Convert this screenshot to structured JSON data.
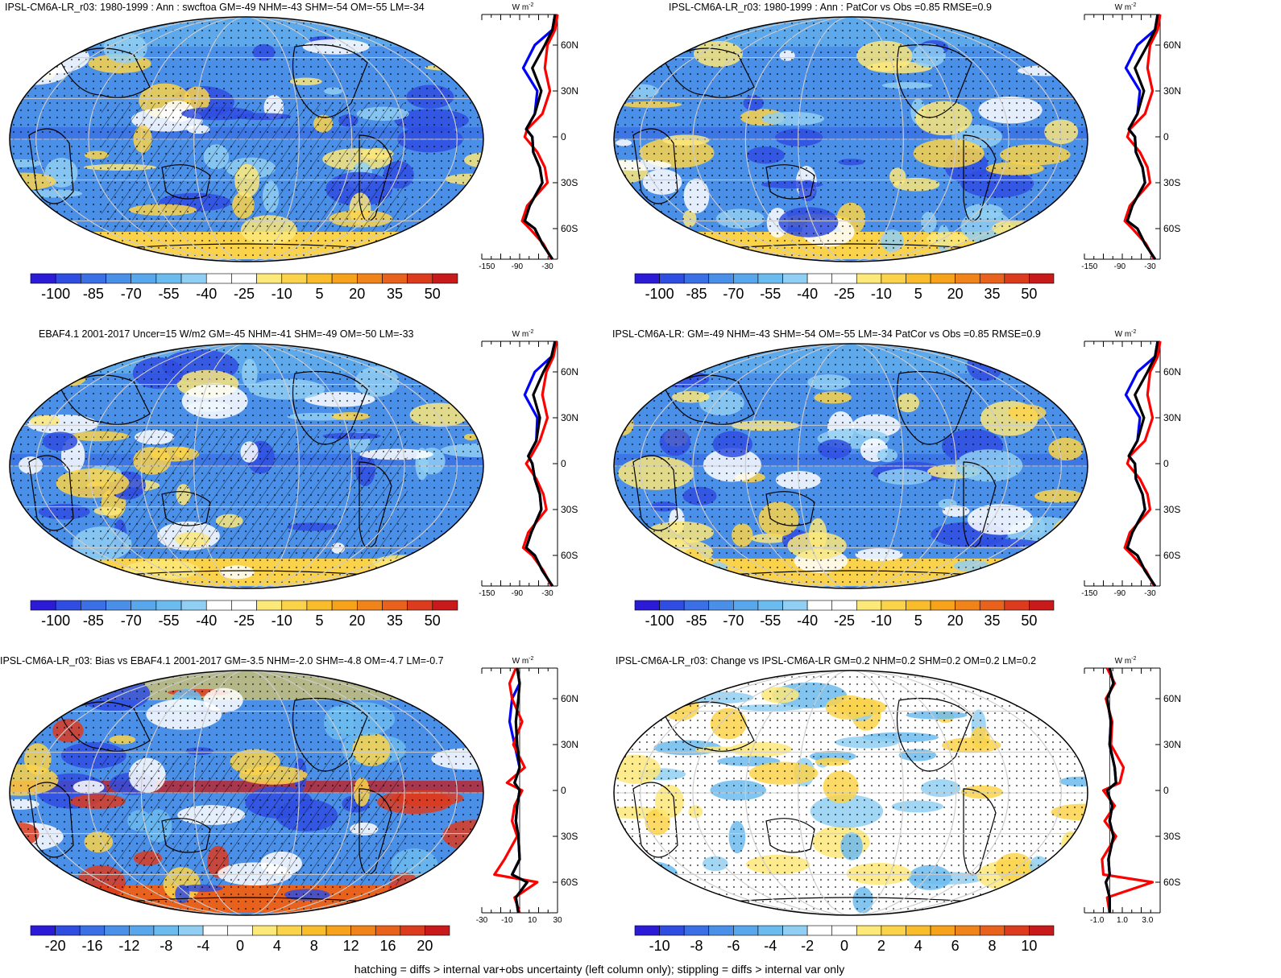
{
  "footnote": "hatching = diffs > internal var+obs uncertainty (left column only); stippling = diffs > internal var only",
  "colors": {
    "scale": [
      "#2b1bd6",
      "#2f4de0",
      "#3a6fe6",
      "#4a8fe8",
      "#58a6ec",
      "#6cbbef",
      "#90cff3",
      "#ffffff",
      "#ffffff",
      "#fde87a",
      "#fbd34a",
      "#f9bd2c",
      "#f6a21a",
      "#f0841a",
      "#e8621e",
      "#dc3b1e",
      "#c81a1a"
    ],
    "model": "#000000",
    "obs": "#ff0000",
    "ref": "#0000ff",
    "grid": "#cccccc"
  },
  "chart_data": [
    {
      "type": "heatmap",
      "panel": "top-left",
      "title": "IPSL-CM6A-LR_r03: 1980-1999 : Ann : swcftoa GM=-49 NHM=-43 SHM=-54 OM=-55 LM=-34",
      "colorbar_ticks": [
        "-100",
        "-85",
        "-70",
        "-55",
        "-40",
        "-25",
        "-10",
        "5",
        "20",
        "35",
        "50"
      ],
      "zonal": {
        "unit": "W m",
        "unit_sup": "-2",
        "xticks": [
          "-150",
          "-90",
          "-30"
        ],
        "xlim": [
          -160,
          -10
        ],
        "yticks": [
          "60N",
          "30N",
          "0",
          "30S",
          "60S"
        ],
        "ylim": [
          -80,
          80
        ],
        "lat": [
          80,
          70,
          60,
          45,
          30,
          15,
          5,
          0,
          -10,
          -20,
          -30,
          -45,
          -55,
          -60,
          -70,
          -80
        ],
        "model": [
          -15,
          -20,
          -35,
          -60,
          -42,
          -55,
          -72,
          -60,
          -58,
          -45,
          -40,
          -65,
          -75,
          -55,
          -40,
          -20
        ],
        "obs": [
          -10,
          -15,
          -30,
          -35,
          -25,
          -40,
          -70,
          -75,
          -50,
          -35,
          -30,
          -70,
          -80,
          -65,
          -38,
          -22
        ],
        "ref": [
          -15,
          -20,
          -55,
          -78,
          -50,
          -55,
          -72,
          -60,
          -58,
          -45,
          -40,
          -65,
          -75,
          -55,
          -40,
          -20
        ]
      }
    },
    {
      "type": "heatmap",
      "panel": "top-right",
      "title": "IPSL-CM6A-LR_r03: 1980-1999 : Ann : PatCor vs Obs =0.85 RMSE=0.9",
      "colorbar_ticks": [
        "-100",
        "-85",
        "-70",
        "-55",
        "-40",
        "-25",
        "-10",
        "5",
        "20",
        "35",
        "50"
      ],
      "zonal": {
        "unit": "W m",
        "unit_sup": "-2",
        "xticks": [
          "-150",
          "-90",
          "-30"
        ],
        "xlim": [
          -160,
          -10
        ],
        "yticks": [
          "60N",
          "30N",
          "0",
          "30S",
          "60S"
        ],
        "ylim": [
          -80,
          80
        ],
        "lat": [
          80,
          70,
          60,
          45,
          30,
          15,
          5,
          0,
          -10,
          -20,
          -30,
          -45,
          -55,
          -60,
          -70,
          -80
        ],
        "model": [
          -15,
          -20,
          -35,
          -60,
          -42,
          -55,
          -72,
          -60,
          -58,
          -45,
          -40,
          -65,
          -75,
          -55,
          -40,
          -20
        ],
        "obs": [
          -10,
          -15,
          -30,
          -35,
          -25,
          -40,
          -70,
          -75,
          -50,
          -35,
          -30,
          -70,
          -80,
          -65,
          -38,
          -22
        ],
        "ref": [
          -15,
          -20,
          -55,
          -78,
          -50,
          -55,
          -72,
          -60,
          -58,
          -45,
          -40,
          -65,
          -75,
          -55,
          -40,
          -20
        ]
      }
    },
    {
      "type": "heatmap",
      "panel": "middle-left",
      "title": "EBAF4.1 2001-2017 Uncer=15 W/m2 GM=-45 NHM=-41 SHM=-49 OM=-50 LM=-33",
      "colorbar_ticks": [
        "-100",
        "-85",
        "-70",
        "-55",
        "-40",
        "-25",
        "-10",
        "5",
        "20",
        "35",
        "50"
      ],
      "zonal": {
        "unit": "W m",
        "unit_sup": "-2",
        "xticks": [
          "-150",
          "-90",
          "-30"
        ],
        "xlim": [
          -160,
          -10
        ],
        "yticks": [
          "60N",
          "30N",
          "0",
          "30S",
          "60S"
        ],
        "ylim": [
          -80,
          80
        ],
        "lat": [
          80,
          70,
          60,
          45,
          30,
          15,
          5,
          0,
          -10,
          -20,
          -30,
          -45,
          -55,
          -60,
          -70,
          -80
        ],
        "model": [
          -15,
          -22,
          -38,
          -58,
          -45,
          -52,
          -68,
          -60,
          -55,
          -45,
          -42,
          -62,
          -72,
          -55,
          -40,
          -20
        ],
        "obs": [
          -12,
          -18,
          -32,
          -40,
          -30,
          -45,
          -62,
          -72,
          -52,
          -38,
          -32,
          -68,
          -78,
          -60,
          -38,
          -22
        ],
        "ref": [
          -15,
          -22,
          -55,
          -75,
          -50,
          -52,
          -68,
          -60,
          -55,
          -45,
          -42,
          -62,
          -72,
          -55,
          -40,
          -20
        ]
      }
    },
    {
      "type": "heatmap",
      "panel": "middle-right",
      "title": "IPSL-CM6A-LR: GM=-49 NHM=-43 SHM=-54 OM=-55 LM=-34 PatCor vs Obs =0.85 RMSE=0.9",
      "colorbar_ticks": [
        "-100",
        "-85",
        "-70",
        "-55",
        "-40",
        "-25",
        "-10",
        "5",
        "20",
        "35",
        "50"
      ],
      "zonal": {
        "unit": "W m",
        "unit_sup": "-2",
        "xticks": [
          "-150",
          "-90",
          "-30"
        ],
        "xlim": [
          -160,
          -10
        ],
        "yticks": [
          "60N",
          "30N",
          "0",
          "30S",
          "60S"
        ],
        "ylim": [
          -80,
          80
        ],
        "lat": [
          80,
          70,
          60,
          45,
          30,
          15,
          5,
          0,
          -10,
          -20,
          -30,
          -45,
          -55,
          -60,
          -70,
          -80
        ],
        "model": [
          -15,
          -20,
          -35,
          -60,
          -42,
          -55,
          -72,
          -60,
          -58,
          -45,
          -40,
          -65,
          -75,
          -55,
          -40,
          -20
        ],
        "obs": [
          -10,
          -15,
          -30,
          -35,
          -25,
          -40,
          -70,
          -75,
          -50,
          -35,
          -30,
          -70,
          -80,
          -65,
          -38,
          -22
        ],
        "ref": [
          -15,
          -20,
          -55,
          -78,
          -50,
          -55,
          -72,
          -60,
          -58,
          -45,
          -40,
          -65,
          -75,
          -55,
          -40,
          -20
        ]
      }
    },
    {
      "type": "heatmap",
      "panel": "bottom-left",
      "title": "IPSL-CM6A-LR_r03: Bias vs EBAF4.1 2001-2017 GM=-3.5 NHM=-2.0 SHM=-4.8 OM=-4.7 LM=-0.7",
      "colorbar_ticks": [
        "-20",
        "-16",
        "-12",
        "-8",
        "-4",
        "0",
        "4",
        "8",
        "12",
        "16",
        "20"
      ],
      "zonal": {
        "unit": "W m",
        "unit_sup": "-2",
        "xticks": [
          "-30",
          "-10",
          "10",
          "30"
        ],
        "xlim": [
          -30,
          30
        ],
        "yticks": [
          "60N",
          "30N",
          "0",
          "30S",
          "60S"
        ],
        "ylim": [
          -80,
          80
        ],
        "lat": [
          80,
          70,
          60,
          45,
          30,
          15,
          5,
          0,
          -10,
          -20,
          -30,
          -45,
          -55,
          -60,
          -70,
          -80
        ],
        "model": [
          -2,
          0,
          -1,
          -3,
          -2,
          0,
          -4,
          0,
          -2,
          -3,
          -1,
          0,
          -6,
          6,
          -3,
          -1
        ],
        "obs": [
          -3,
          -8,
          -6,
          2,
          -5,
          4,
          -10,
          2,
          -4,
          -6,
          -2,
          -12,
          -20,
          14,
          -4,
          0
        ],
        "ref": [
          -2,
          0,
          -6,
          -8,
          -4,
          0,
          -4,
          0,
          -2,
          -3,
          -1,
          0,
          -6,
          6,
          -3,
          -1
        ]
      }
    },
    {
      "type": "heatmap",
      "panel": "bottom-right",
      "title": "IPSL-CM6A-LR_r03: Change vs IPSL-CM6A-LR GM=0.2 NHM=0.2 SHM=0.2 OM=0.2 LM=0.2",
      "colorbar_ticks": [
        "-10",
        "-8",
        "-6",
        "-4",
        "-2",
        "0",
        "2",
        "4",
        "6",
        "8",
        "10"
      ],
      "zonal": {
        "unit": "W m",
        "unit_sup": "-2",
        "xticks": [
          "-1.0",
          "1.0",
          "3.0"
        ],
        "xlim": [
          -2,
          4
        ],
        "yticks": [
          "60N",
          "30N",
          "0",
          "30S",
          "60S"
        ],
        "ylim": [
          -80,
          80
        ],
        "lat": [
          80,
          70,
          60,
          45,
          30,
          15,
          5,
          0,
          -10,
          -20,
          -30,
          -45,
          -55,
          -60,
          -70,
          -80
        ],
        "model": [
          0,
          0.3,
          -0.2,
          0.1,
          0,
          0.4,
          0.5,
          -0.2,
          0.2,
          0,
          0.3,
          -0.1,
          0,
          -0.3,
          0,
          0
        ],
        "obs": [
          -0.2,
          0.4,
          -0.3,
          0.2,
          0.1,
          1.1,
          0.8,
          -0.5,
          0.4,
          -0.4,
          0.5,
          -0.6,
          -0.5,
          3.4,
          -0.2,
          0
        ],
        "ref": [
          0,
          0.3,
          -0.2,
          0.1,
          0,
          0.4,
          0.5,
          -0.2,
          0.2,
          0,
          0.3,
          -0.1,
          0,
          -0.3,
          0,
          0
        ]
      }
    }
  ]
}
